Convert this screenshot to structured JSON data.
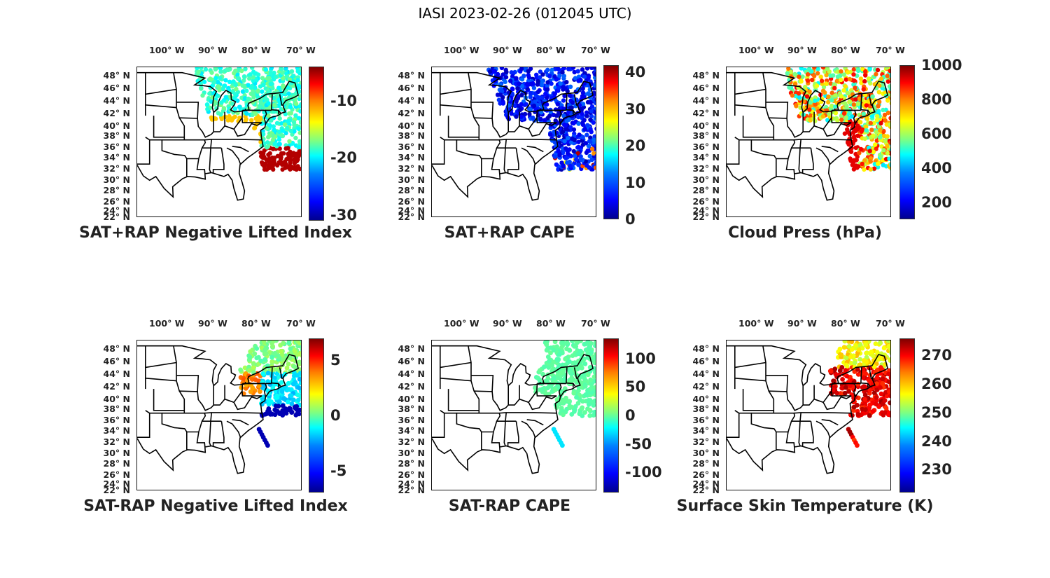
{
  "title": "IASI 2023-02-26 (012045 UTC)",
  "lat_labels": [
    "48° N",
    "46° N",
    "44° N",
    "42° N",
    "40° N",
    "38° N",
    "36° N",
    "34° N",
    "32° N",
    "30° N",
    "28° N",
    "26° N",
    "24° N",
    "22° N"
  ],
  "lon_labels": [
    "100° W",
    "90° W",
    "80° W",
    "70° W"
  ],
  "colormap": "jet",
  "panels": [
    {
      "id": "sat-rap-neg-li",
      "title": "SAT+RAP Negative Lifted Index",
      "cbar_ticks": [
        "-10",
        "-20",
        "-30"
      ],
      "range": [
        -31,
        -4
      ]
    },
    {
      "id": "sat-rap-cape",
      "title": "SAT+RAP CAPE",
      "cbar_ticks": [
        "40",
        "30",
        "20",
        "10",
        "0"
      ],
      "range": [
        0,
        42
      ]
    },
    {
      "id": "cloud-press",
      "title": "Cloud Press (hPa)",
      "cbar_ticks": [
        "1000",
        "800",
        "600",
        "400",
        "200"
      ],
      "range": [
        100,
        1000
      ]
    },
    {
      "id": "sat-minus-rap-li",
      "title": "SAT-RAP Negative Lifted Index",
      "cbar_ticks": [
        "5",
        "0",
        "-5"
      ],
      "range": [
        -7,
        7
      ]
    },
    {
      "id": "sat-minus-rap-cape",
      "title": "SAT-RAP CAPE",
      "cbar_ticks": [
        "100",
        "50",
        "0",
        "-50",
        "-100"
      ],
      "range": [
        -135,
        135
      ]
    },
    {
      "id": "skin-temp",
      "title": "Surface Skin Temperature (K)",
      "cbar_ticks": [
        "270",
        "260",
        "250",
        "240",
        "230"
      ],
      "range": [
        222,
        276
      ]
    }
  ]
}
